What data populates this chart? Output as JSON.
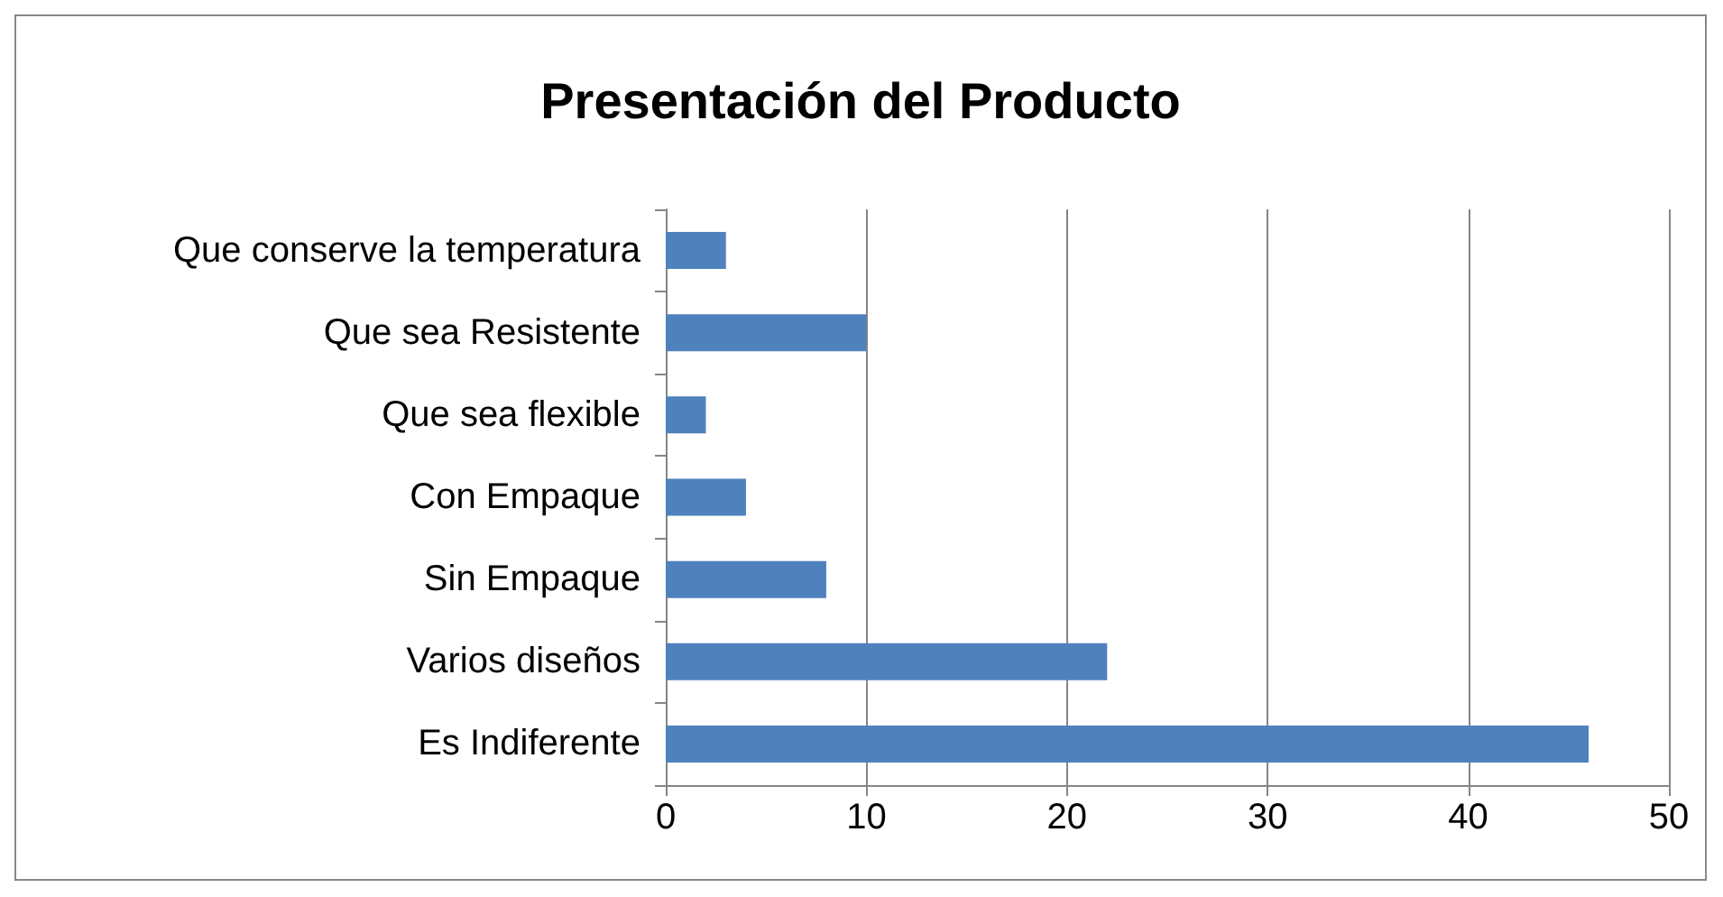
{
  "chart_data": {
    "type": "bar",
    "title": "Presentación del Producto",
    "orientation": "horizontal",
    "categories": [
      "Que conserve la temperatura",
      "Que sea Resistente",
      "Que sea flexible",
      "Con Empaque",
      "Sin Empaque",
      "Varios diseños",
      "Es Indiferente"
    ],
    "values": [
      3,
      10,
      2,
      4,
      8,
      22,
      46
    ],
    "color": "#4f81bd",
    "xlim": [
      0,
      50
    ],
    "xticks": [
      0,
      10,
      20,
      30,
      40,
      50
    ],
    "grid": "x"
  }
}
